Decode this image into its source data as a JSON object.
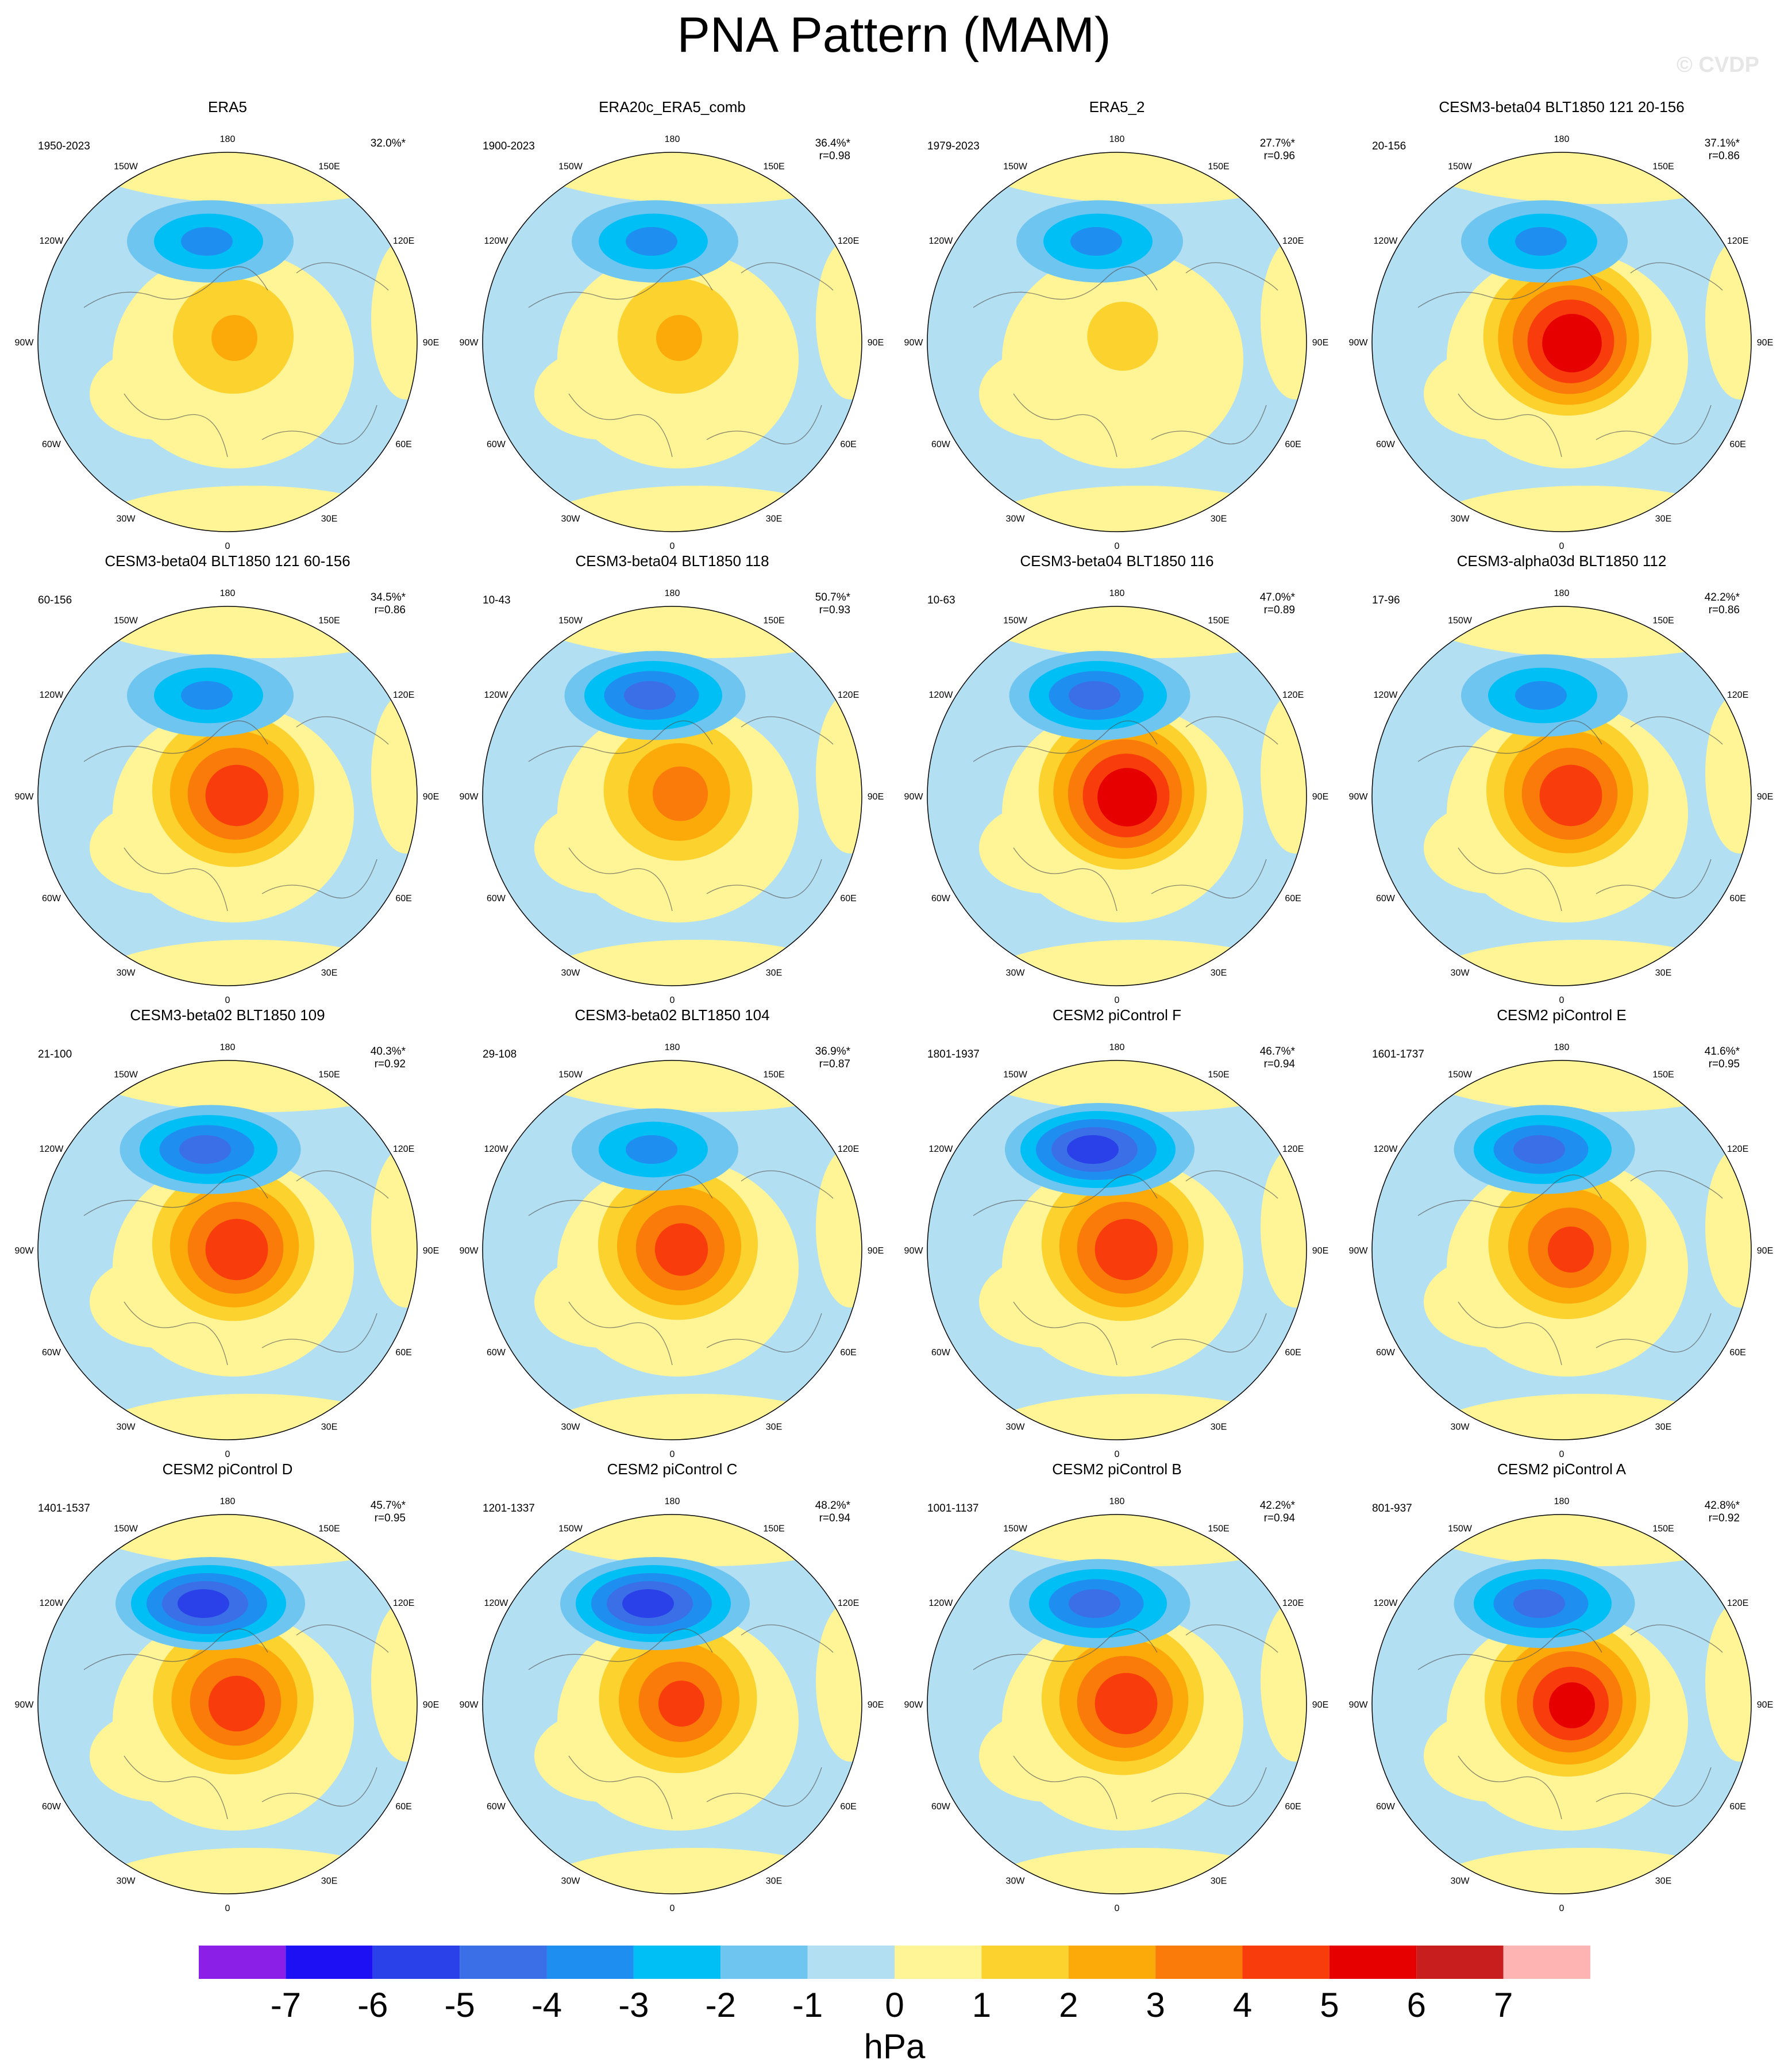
{
  "title": "PNA Pattern (MAM)",
  "watermark": "© CVDP",
  "lon_labels": [
    "180",
    "150E",
    "120E",
    "90E",
    "60E",
    "30E",
    "0",
    "30W",
    "60W",
    "90W",
    "120W",
    "150W"
  ],
  "panels": [
    {
      "title": "ERA5",
      "period": "1950-2023",
      "pct": "32.0%*",
      "r": ""
    },
    {
      "title": "ERA20c_ERA5_comb",
      "period": "1900-2023",
      "pct": "36.4%*",
      "r": "r=0.98"
    },
    {
      "title": "ERA5_2",
      "period": "1979-2023",
      "pct": "27.7%*",
      "r": "r=0.96"
    },
    {
      "title": "CESM3-beta04 BLT1850 121 20-156",
      "period": "20-156",
      "pct": "37.1%*",
      "r": "r=0.86"
    },
    {
      "title": "CESM3-beta04 BLT1850 121 60-156",
      "period": "60-156",
      "pct": "34.5%*",
      "r": "r=0.86"
    },
    {
      "title": "CESM3-beta04 BLT1850 118",
      "period": "10-43",
      "pct": "50.7%*",
      "r": "r=0.93"
    },
    {
      "title": "CESM3-beta04 BLT1850 116",
      "period": "10-63",
      "pct": "47.0%*",
      "r": "r=0.89"
    },
    {
      "title": "CESM3-alpha03d BLT1850 112",
      "period": "17-96",
      "pct": "42.2%*",
      "r": "r=0.86"
    },
    {
      "title": "CESM3-beta02 BLT1850 109",
      "period": "21-100",
      "pct": "40.3%*",
      "r": "r=0.92"
    },
    {
      "title": "CESM3-beta02 BLT1850 104",
      "period": "29-108",
      "pct": "36.9%*",
      "r": "r=0.87"
    },
    {
      "title": "CESM2 piControl F",
      "period": "1801-1937",
      "pct": "46.7%*",
      "r": "r=0.94"
    },
    {
      "title": "CESM2 piControl E",
      "period": "1601-1737",
      "pct": "41.6%*",
      "r": "r=0.95"
    },
    {
      "title": "CESM2 piControl D",
      "period": "1401-1537",
      "pct": "45.7%*",
      "r": "r=0.95"
    },
    {
      "title": "CESM2 piControl C",
      "period": "1201-1337",
      "pct": "48.2%*",
      "r": "r=0.94"
    },
    {
      "title": "CESM2 piControl B",
      "period": "1001-1137",
      "pct": "42.2%*",
      "r": "r=0.94"
    },
    {
      "title": "CESM2 piControl A",
      "period": "801-937",
      "pct": "42.8%*",
      "r": "r=0.92"
    }
  ],
  "pattern_levels": [
    {
      "low": -3.0,
      "high": 2.0
    },
    {
      "low": -3.0,
      "high": 2.0
    },
    {
      "low": -3.0,
      "high": 1.2
    },
    {
      "low": -3.0,
      "high": 5.5
    },
    {
      "low": -3.0,
      "high": 4.5
    },
    {
      "low": -4.0,
      "high": 3.2
    },
    {
      "low": -4.0,
      "high": 5.5
    },
    {
      "low": -3.0,
      "high": 4.5
    },
    {
      "low": -4.0,
      "high": 4.5
    },
    {
      "low": -3.0,
      "high": 4.2
    },
    {
      "low": -5.0,
      "high": 4.5
    },
    {
      "low": -4.0,
      "high": 4.0
    },
    {
      "low": -5.0,
      "high": 4.3
    },
    {
      "low": -5.0,
      "high": 4.0
    },
    {
      "low": -4.0,
      "high": 4.5
    },
    {
      "low": -4.0,
      "high": 5.0
    }
  ],
  "colorbar": {
    "unit": "hPa",
    "ticks": [
      "-7",
      "-6",
      "-5",
      "-4",
      "-3",
      "-2",
      "-1",
      "0",
      "1",
      "2",
      "3",
      "4",
      "5",
      "6",
      "7"
    ],
    "colors": [
      "#8b1fe8",
      "#1e10f5",
      "#2a40e8",
      "#3a6fe8",
      "#1e8ff0",
      "#00bff5",
      "#6ec5f0",
      "#b3dff2",
      "#fff597",
      "#fcd22e",
      "#fbaa0a",
      "#fa7b0a",
      "#f83c0c",
      "#e60000",
      "#c81e1e",
      "#ffb4b4"
    ]
  }
}
